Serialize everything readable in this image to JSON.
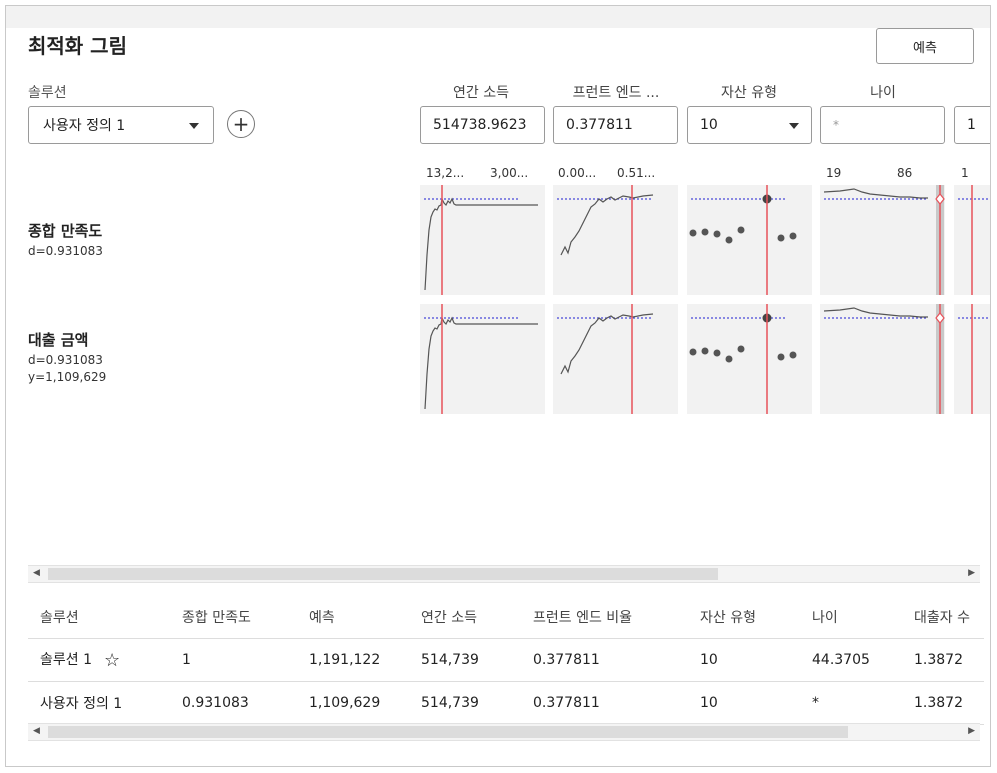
{
  "header": {
    "title": "최적화 그림",
    "predict_button": "예측"
  },
  "solution": {
    "label": "솔루션",
    "selected": "사용자 정의 1"
  },
  "factors": [
    {
      "label": "연간 소득",
      "value": "514738.9623",
      "ticks": [
        "13,2...",
        "3,00..."
      ]
    },
    {
      "label": "프런트 엔드 ...",
      "value": "0.377811",
      "ticks": [
        "0.00...",
        "0.51..."
      ]
    },
    {
      "label": "자산 유형",
      "value": "10",
      "ticks": []
    },
    {
      "label": "나이",
      "value": "*",
      "ticks": [
        "19",
        "86"
      ]
    },
    {
      "label": "",
      "value": "1",
      "ticks": [
        "1"
      ]
    }
  ],
  "responses": [
    {
      "name": "종합 만족도",
      "d": "d=0.931083",
      "y": ""
    },
    {
      "name": "대출 금액",
      "d": "d=0.931083",
      "y": "y=1,109,629"
    }
  ],
  "table": {
    "headers": [
      "솔루션",
      "종합 만족도",
      "예측",
      "연간 소득",
      "프런트 엔드 비율",
      "자산 유형",
      "나이",
      "대출자 수"
    ],
    "rows": [
      [
        "솔루션 1",
        "1",
        "1,191,122",
        "514,739",
        "0.377811",
        "10",
        "44.3705",
        "1.3872"
      ],
      [
        "사용자 정의 1",
        "0.931083",
        "1,109,629",
        "514,739",
        "0.377811",
        "10",
        "*",
        "1.3872"
      ]
    ]
  },
  "colors": {
    "current_line": "#e8525a",
    "target_line": "#4a4ad8",
    "curve": "#555555",
    "panel_bg": "#f2f2f2"
  }
}
